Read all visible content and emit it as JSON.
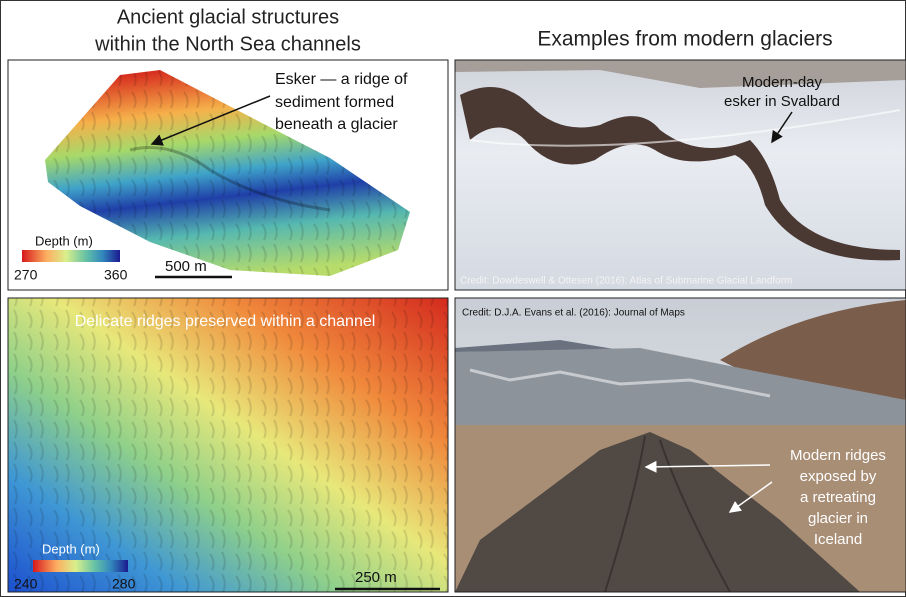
{
  "left_heading": [
    "Ancient glacial structures",
    "within the North Sea channels"
  ],
  "right_heading": "Examples from modern glaciers",
  "panels": [
    {
      "annotation": [
        "Esker — a ridge of",
        "sediment  formed",
        "beneath a glacier"
      ],
      "legend_title": "Depth (m)",
      "legend_min": 270,
      "legend_max": 360,
      "scale": "500 m"
    },
    {
      "annotation": [
        "Modern-day",
        "esker in Svalbard"
      ],
      "credit": "Credit: Dowdeswell & Ottesen (2016): Atlas of Submarine Glacial Landform"
    },
    {
      "annotation": [
        "Delicate ridges preserved within a channel"
      ],
      "legend_title": "Depth (m)",
      "legend_min": 240,
      "legend_max": 280,
      "scale": "250 m"
    },
    {
      "credit": "Credit: D.J.A. Evans et al. (2016): Journal of Maps",
      "annotation": [
        "Modern ridges",
        "exposed by",
        "a retreating",
        "glacier in",
        "Iceland"
      ]
    }
  ]
}
